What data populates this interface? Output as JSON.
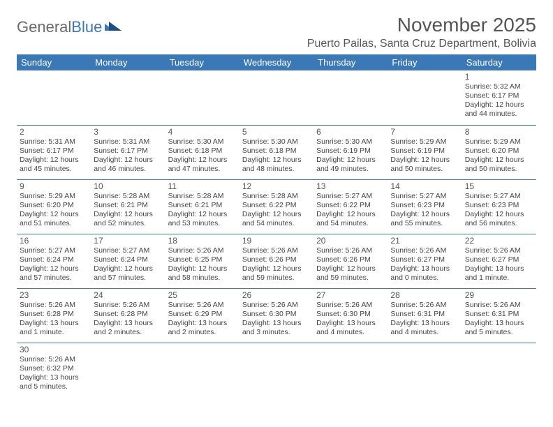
{
  "logo": {
    "part1": "General",
    "part2": "Blue"
  },
  "title": "November 2025",
  "location": "Puerto Pailas, Santa Cruz Department, Bolivia",
  "colors": {
    "header_bg": "#3b78b8",
    "header_text": "#ffffff",
    "rule": "#3b78b8",
    "text": "#444444"
  },
  "dow": [
    "Sunday",
    "Monday",
    "Tuesday",
    "Wednesday",
    "Thursday",
    "Friday",
    "Saturday"
  ],
  "weeks": [
    [
      null,
      null,
      null,
      null,
      null,
      null,
      {
        "n": "1",
        "sr": "Sunrise: 5:32 AM",
        "ss": "Sunset: 6:17 PM",
        "dl": "Daylight: 12 hours and 44 minutes."
      }
    ],
    [
      {
        "n": "2",
        "sr": "Sunrise: 5:31 AM",
        "ss": "Sunset: 6:17 PM",
        "dl": "Daylight: 12 hours and 45 minutes."
      },
      {
        "n": "3",
        "sr": "Sunrise: 5:31 AM",
        "ss": "Sunset: 6:17 PM",
        "dl": "Daylight: 12 hours and 46 minutes."
      },
      {
        "n": "4",
        "sr": "Sunrise: 5:30 AM",
        "ss": "Sunset: 6:18 PM",
        "dl": "Daylight: 12 hours and 47 minutes."
      },
      {
        "n": "5",
        "sr": "Sunrise: 5:30 AM",
        "ss": "Sunset: 6:18 PM",
        "dl": "Daylight: 12 hours and 48 minutes."
      },
      {
        "n": "6",
        "sr": "Sunrise: 5:30 AM",
        "ss": "Sunset: 6:19 PM",
        "dl": "Daylight: 12 hours and 49 minutes."
      },
      {
        "n": "7",
        "sr": "Sunrise: 5:29 AM",
        "ss": "Sunset: 6:19 PM",
        "dl": "Daylight: 12 hours and 50 minutes."
      },
      {
        "n": "8",
        "sr": "Sunrise: 5:29 AM",
        "ss": "Sunset: 6:20 PM",
        "dl": "Daylight: 12 hours and 50 minutes."
      }
    ],
    [
      {
        "n": "9",
        "sr": "Sunrise: 5:29 AM",
        "ss": "Sunset: 6:20 PM",
        "dl": "Daylight: 12 hours and 51 minutes."
      },
      {
        "n": "10",
        "sr": "Sunrise: 5:28 AM",
        "ss": "Sunset: 6:21 PM",
        "dl": "Daylight: 12 hours and 52 minutes."
      },
      {
        "n": "11",
        "sr": "Sunrise: 5:28 AM",
        "ss": "Sunset: 6:21 PM",
        "dl": "Daylight: 12 hours and 53 minutes."
      },
      {
        "n": "12",
        "sr": "Sunrise: 5:28 AM",
        "ss": "Sunset: 6:22 PM",
        "dl": "Daylight: 12 hours and 54 minutes."
      },
      {
        "n": "13",
        "sr": "Sunrise: 5:27 AM",
        "ss": "Sunset: 6:22 PM",
        "dl": "Daylight: 12 hours and 54 minutes."
      },
      {
        "n": "14",
        "sr": "Sunrise: 5:27 AM",
        "ss": "Sunset: 6:23 PM",
        "dl": "Daylight: 12 hours and 55 minutes."
      },
      {
        "n": "15",
        "sr": "Sunrise: 5:27 AM",
        "ss": "Sunset: 6:23 PM",
        "dl": "Daylight: 12 hours and 56 minutes."
      }
    ],
    [
      {
        "n": "16",
        "sr": "Sunrise: 5:27 AM",
        "ss": "Sunset: 6:24 PM",
        "dl": "Daylight: 12 hours and 57 minutes."
      },
      {
        "n": "17",
        "sr": "Sunrise: 5:27 AM",
        "ss": "Sunset: 6:24 PM",
        "dl": "Daylight: 12 hours and 57 minutes."
      },
      {
        "n": "18",
        "sr": "Sunrise: 5:26 AM",
        "ss": "Sunset: 6:25 PM",
        "dl": "Daylight: 12 hours and 58 minutes."
      },
      {
        "n": "19",
        "sr": "Sunrise: 5:26 AM",
        "ss": "Sunset: 6:26 PM",
        "dl": "Daylight: 12 hours and 59 minutes."
      },
      {
        "n": "20",
        "sr": "Sunrise: 5:26 AM",
        "ss": "Sunset: 6:26 PM",
        "dl": "Daylight: 12 hours and 59 minutes."
      },
      {
        "n": "21",
        "sr": "Sunrise: 5:26 AM",
        "ss": "Sunset: 6:27 PM",
        "dl": "Daylight: 13 hours and 0 minutes."
      },
      {
        "n": "22",
        "sr": "Sunrise: 5:26 AM",
        "ss": "Sunset: 6:27 PM",
        "dl": "Daylight: 13 hours and 1 minute."
      }
    ],
    [
      {
        "n": "23",
        "sr": "Sunrise: 5:26 AM",
        "ss": "Sunset: 6:28 PM",
        "dl": "Daylight: 13 hours and 1 minute."
      },
      {
        "n": "24",
        "sr": "Sunrise: 5:26 AM",
        "ss": "Sunset: 6:28 PM",
        "dl": "Daylight: 13 hours and 2 minutes."
      },
      {
        "n": "25",
        "sr": "Sunrise: 5:26 AM",
        "ss": "Sunset: 6:29 PM",
        "dl": "Daylight: 13 hours and 2 minutes."
      },
      {
        "n": "26",
        "sr": "Sunrise: 5:26 AM",
        "ss": "Sunset: 6:30 PM",
        "dl": "Daylight: 13 hours and 3 minutes."
      },
      {
        "n": "27",
        "sr": "Sunrise: 5:26 AM",
        "ss": "Sunset: 6:30 PM",
        "dl": "Daylight: 13 hours and 4 minutes."
      },
      {
        "n": "28",
        "sr": "Sunrise: 5:26 AM",
        "ss": "Sunset: 6:31 PM",
        "dl": "Daylight: 13 hours and 4 minutes."
      },
      {
        "n": "29",
        "sr": "Sunrise: 5:26 AM",
        "ss": "Sunset: 6:31 PM",
        "dl": "Daylight: 13 hours and 5 minutes."
      }
    ],
    [
      {
        "n": "30",
        "sr": "Sunrise: 5:26 AM",
        "ss": "Sunset: 6:32 PM",
        "dl": "Daylight: 13 hours and 5 minutes."
      },
      null,
      null,
      null,
      null,
      null,
      null
    ]
  ]
}
